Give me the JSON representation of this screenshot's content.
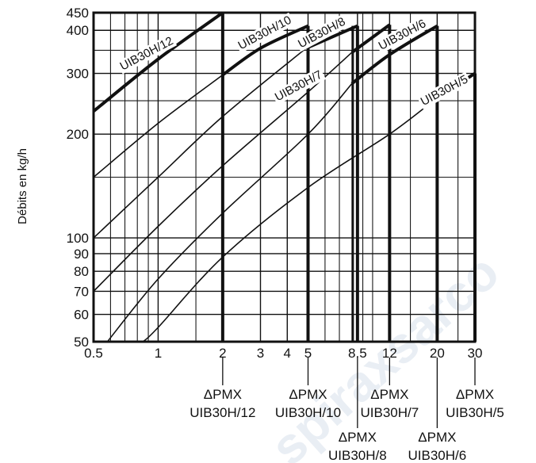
{
  "chart_data": {
    "type": "line",
    "title": "",
    "ylabel": "Débits en kg/h",
    "xlabel": "",
    "xscale": "log",
    "yscale": "log",
    "xlim": [
      0.5,
      30
    ],
    "ylim": [
      50,
      450
    ],
    "grid": true,
    "x_ticks": [
      0.5,
      1,
      2,
      3,
      4,
      5,
      8.5,
      12,
      20,
      30
    ],
    "x_tick_labels": [
      "0.5",
      "1",
      "2",
      "3",
      "4",
      "5",
      "8.5",
      "12",
      "20",
      "30"
    ],
    "y_ticks": [
      50,
      60,
      70,
      80,
      90,
      100,
      200,
      300,
      400,
      450
    ],
    "y_tick_labels": [
      "50",
      "60",
      "70",
      "80",
      "90",
      "100",
      "200",
      "300",
      "400",
      "450"
    ],
    "series": [
      {
        "name": "UIB30H/12",
        "bold": true,
        "x_max": 2,
        "x": [
          0.5,
          1,
          2
        ],
        "y": [
          233,
          330,
          450
        ]
      },
      {
        "name": "UIB30H/10",
        "bold": false,
        "x_max": 2,
        "x": [
          0.5,
          1,
          2
        ],
        "y": [
          150,
          215,
          297
        ]
      },
      {
        "name": "UIB30H/10",
        "bold": true,
        "x_max": 5,
        "x": [
          2,
          3,
          5
        ],
        "y": [
          297,
          355,
          412
        ]
      },
      {
        "name": "UIB30H/8",
        "bold": false,
        "x_max": 4.9,
        "x": [
          0.5,
          1,
          2,
          4.9
        ],
        "y": [
          100,
          150,
          225,
          355
        ]
      },
      {
        "name": "UIB30H/8",
        "bold": true,
        "x_max": 8.5,
        "x": [
          4.9,
          8.5
        ],
        "y": [
          355,
          412
        ]
      },
      {
        "name": "UIB30H/7",
        "bold": false,
        "x_max": 8,
        "x": [
          0.5,
          1,
          2,
          5,
          8
        ],
        "y": [
          70,
          108,
          162,
          265,
          345
        ]
      },
      {
        "name": "UIB30H/7",
        "bold": true,
        "x_max": 12,
        "x": [
          8,
          12
        ],
        "y": [
          345,
          415
        ]
      },
      {
        "name": "UIB30H/6",
        "bold": false,
        "x_max": 8,
        "x": [
          0.58,
          1,
          2,
          5,
          8
        ],
        "y": [
          50,
          76,
          118,
          200,
          280
        ]
      },
      {
        "name": "UIB30H/6",
        "bold": true,
        "x_max": 20,
        "x": [
          8,
          12,
          20
        ],
        "y": [
          280,
          340,
          412
        ]
      },
      {
        "name": "UIB30H/5",
        "bold": false,
        "x_max": 20,
        "x": [
          0.85,
          1,
          2,
          5,
          12,
          20
        ],
        "y": [
          50,
          55,
          88,
          140,
          200,
          255
        ]
      },
      {
        "name": "UIB30H/5",
        "bold": true,
        "x_max": 30,
        "x": [
          20,
          30
        ],
        "y": [
          255,
          300
        ]
      }
    ],
    "series_labels": [
      {
        "text": "UIB30H/12",
        "x": 0.9,
        "y": 335
      },
      {
        "text": "UIB30H/10",
        "x": 3.2,
        "y": 385
      },
      {
        "text": "UIB30H/8",
        "x": 5.9,
        "y": 385
      },
      {
        "text": "UIB30H/7",
        "x": 4.6,
        "y": 270
      },
      {
        "text": "UIB30H/6",
        "x": 14.0,
        "y": 380
      },
      {
        "text": "UIB30H/5",
        "x": 22.0,
        "y": 262
      }
    ],
    "pressure_limits": [
      {
        "x": 2,
        "label_top": "ΔPMX",
        "label_bottom": "UIB30H/12",
        "row": 1
      },
      {
        "x": 5,
        "label_top": "ΔPMX",
        "label_bottom": "UIB30H/10",
        "row": 1
      },
      {
        "x": 8.5,
        "label_top": "ΔPMX",
        "label_bottom": "UIB30H/8",
        "row": 2
      },
      {
        "x": 12,
        "label_top": "ΔPMX",
        "label_bottom": "UIB30H/7",
        "row": 1
      },
      {
        "x": 20,
        "label_top": "ΔPMX",
        "label_bottom": "UIB30H/6",
        "row": 2
      },
      {
        "x": 30,
        "label_top": "ΔPMX",
        "label_bottom": "UIB30H/5",
        "row": 1
      }
    ],
    "watermark": "spiraxsarco"
  }
}
